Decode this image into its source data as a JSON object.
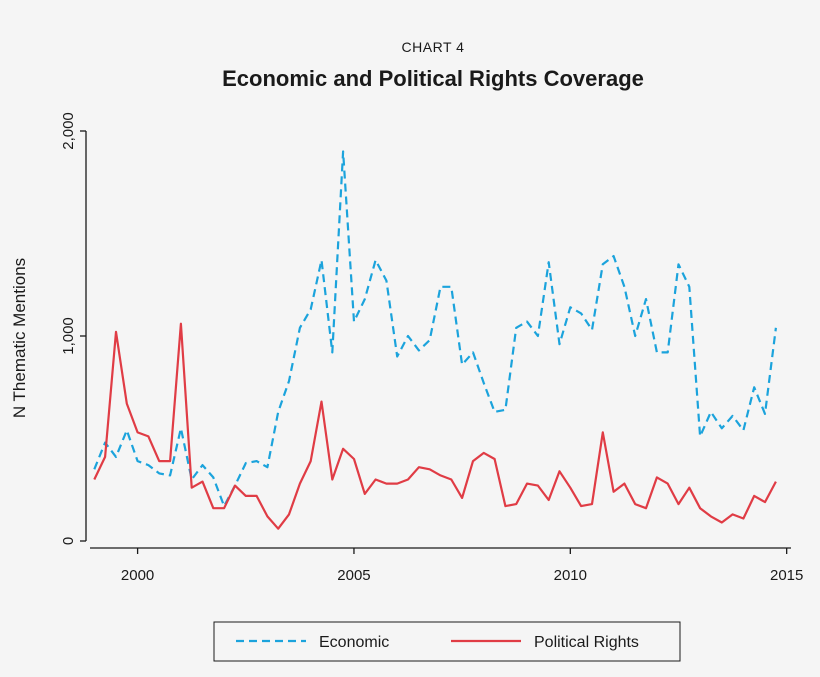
{
  "chart_data": {
    "type": "line",
    "kicker": "CHART 4",
    "title": "Economic and Political Rights Coverage",
    "xlabel": "",
    "ylabel": "N Thematic Mentions",
    "xlim": [
      1998.9,
      2015.1
    ],
    "ylim": [
      0,
      2000
    ],
    "x_ticks": [
      2000,
      2005,
      2010,
      2015
    ],
    "x_tick_labels": [
      "2000",
      "2005",
      "2010",
      "2015"
    ],
    "y_ticks": [
      0,
      1000,
      2000
    ],
    "y_tick_labels": [
      "0",
      "1,000",
      "2,000"
    ],
    "grid": false,
    "legend_position": "bottom-center",
    "x": [
      1999.0,
      1999.25,
      1999.5,
      1999.75,
      2000.0,
      2000.25,
      2000.5,
      2000.75,
      2001.0,
      2001.25,
      2001.5,
      2001.75,
      2002.0,
      2002.25,
      2002.5,
      2002.75,
      2003.0,
      2003.25,
      2003.5,
      2003.75,
      2004.0,
      2004.25,
      2004.5,
      2004.75,
      2005.0,
      2005.25,
      2005.5,
      2005.75,
      2006.0,
      2006.25,
      2006.5,
      2006.75,
      2007.0,
      2007.25,
      2007.5,
      2007.75,
      2008.0,
      2008.25,
      2008.5,
      2008.75,
      2009.0,
      2009.25,
      2009.5,
      2009.75,
      2010.0,
      2010.25,
      2010.5,
      2010.75,
      2011.0,
      2011.25,
      2011.5,
      2011.75,
      2012.0,
      2012.25,
      2012.5,
      2012.75,
      2013.0,
      2013.25,
      2013.5,
      2013.75,
      2014.0,
      2014.25,
      2014.5,
      2014.75
    ],
    "series": [
      {
        "name": "Economic",
        "color": "#1ba3dc",
        "dash": "dashed",
        "values": [
          350,
          480,
          410,
          540,
          390,
          370,
          330,
          320,
          550,
          300,
          370,
          310,
          170,
          270,
          380,
          390,
          360,
          630,
          780,
          1040,
          1130,
          1370,
          920,
          1900,
          1070,
          1180,
          1370,
          1270,
          900,
          1000,
          930,
          980,
          1240,
          1240,
          860,
          920,
          770,
          630,
          640,
          1040,
          1070,
          1000,
          1360,
          960,
          1140,
          1110,
          1030,
          1350,
          1390,
          1240,
          1000,
          1180,
          920,
          920,
          1350,
          1240,
          510,
          630,
          550,
          610,
          540,
          750,
          620,
          1040
        ]
      },
      {
        "name": "Political Rights",
        "color": "#e03c45",
        "dash": "solid",
        "values": [
          300,
          410,
          1020,
          670,
          530,
          510,
          390,
          390,
          1060,
          260,
          290,
          160,
          160,
          270,
          220,
          220,
          120,
          60,
          130,
          280,
          390,
          680,
          300,
          450,
          400,
          230,
          300,
          280,
          280,
          300,
          360,
          350,
          320,
          300,
          210,
          390,
          430,
          400,
          170,
          180,
          280,
          270,
          200,
          340,
          260,
          170,
          180,
          530,
          240,
          280,
          180,
          160,
          310,
          280,
          180,
          260,
          160,
          120,
          90,
          130,
          110,
          220,
          190,
          290
        ]
      }
    ]
  }
}
